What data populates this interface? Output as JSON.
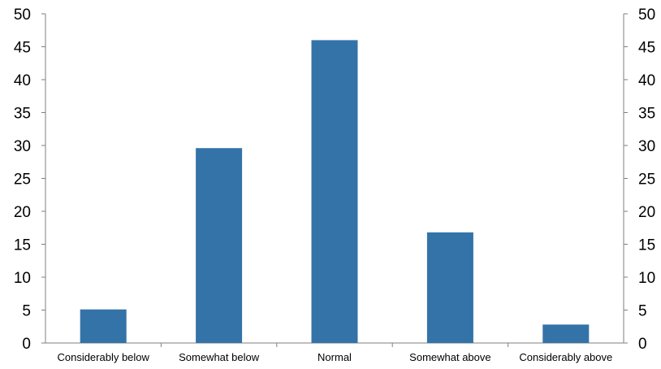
{
  "chart_data": {
    "type": "bar",
    "title": "",
    "xlabel": "",
    "ylabel": "",
    "categories": [
      "Considerably below",
      "Somewhat below",
      "Normal",
      "Somewhat above",
      "Considerably above"
    ],
    "values": [
      5.1,
      29.6,
      46.0,
      16.8,
      2.8
    ],
    "ylim": [
      0,
      50
    ],
    "yticks": [
      0,
      5,
      10,
      15,
      20,
      25,
      30,
      35,
      40,
      45,
      50
    ],
    "ytick_labels": [
      "0",
      "5",
      "10",
      "15",
      "20",
      "25",
      "30",
      "35",
      "40",
      "45",
      "50"
    ],
    "secondary_axis": true,
    "grid": false,
    "colors": {
      "bar": "#3473a8",
      "axis": "#7f7f7f"
    }
  }
}
